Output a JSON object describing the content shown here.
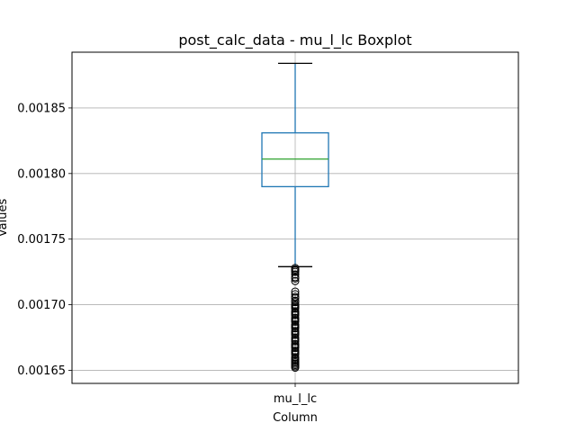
{
  "chart_data": {
    "type": "boxplot",
    "title": "post_calc_data - mu_l_lc Boxplot",
    "xlabel": "Column",
    "ylabel": "Values",
    "categories": [
      "mu_l_lc"
    ],
    "ylim": [
      0.00164,
      0.0018925
    ],
    "yticks": [
      0.00165,
      0.0017,
      0.00175,
      0.0018,
      0.00185
    ],
    "ytick_labels": [
      "0.00165",
      "0.00170",
      "0.00175",
      "0.00180",
      "0.00185"
    ],
    "grid": true,
    "boxes": [
      {
        "name": "mu_l_lc",
        "whisker_low": 0.001729,
        "q1": 0.00179,
        "median": 0.001811,
        "q3": 0.001831,
        "whisker_high": 0.001884,
        "outliers": [
          0.001728,
          0.001727,
          0.001726,
          0.001725,
          0.001723,
          0.001721,
          0.00172,
          0.001718,
          0.00171,
          0.001708,
          0.001706,
          0.001705,
          0.001703,
          0.001702,
          0.0017,
          0.001699,
          0.001698,
          0.001697,
          0.001695,
          0.001694,
          0.001693,
          0.001692,
          0.00169,
          0.001689,
          0.001688,
          0.001687,
          0.001685,
          0.001684,
          0.001683,
          0.001682,
          0.00168,
          0.001679,
          0.001678,
          0.001677,
          0.001675,
          0.001674,
          0.001673,
          0.001672,
          0.00167,
          0.001669,
          0.001668,
          0.001667,
          0.001665,
          0.001664,
          0.001663,
          0.001662,
          0.00166,
          0.001659,
          0.001658,
          0.001657,
          0.001656,
          0.001655,
          0.001654,
          0.001653,
          0.001652
        ]
      }
    ],
    "colors": {
      "box": "#1f77b4",
      "median": "#2ca02c",
      "whisker": "#1f77b4",
      "cap": "#000000",
      "flier": "#000000",
      "grid": "#b0b0b0"
    }
  }
}
